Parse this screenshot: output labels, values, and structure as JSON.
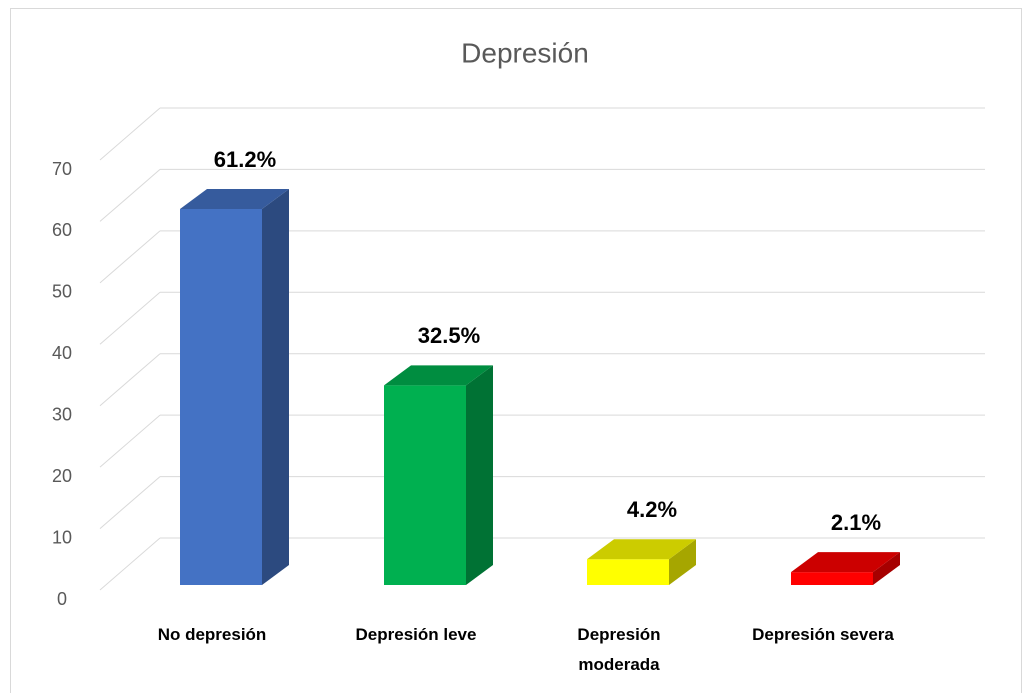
{
  "chart_data": {
    "type": "bar3d",
    "title": "Depresión",
    "categories": [
      "No depresión",
      "Depresión leve",
      "Depresión moderada",
      "Depresión severa"
    ],
    "values": [
      61.2,
      32.5,
      4.2,
      2.1
    ],
    "value_labels": [
      "61.2%",
      "32.5%",
      "4.2%",
      "2.1%"
    ],
    "colors": [
      "#4472c4",
      "#00b050",
      "#ffff00",
      "#ff0000"
    ],
    "ylim": [
      0,
      70
    ],
    "yticks": [
      0,
      10,
      20,
      30,
      40,
      50,
      60,
      70
    ],
    "grid": true
  }
}
